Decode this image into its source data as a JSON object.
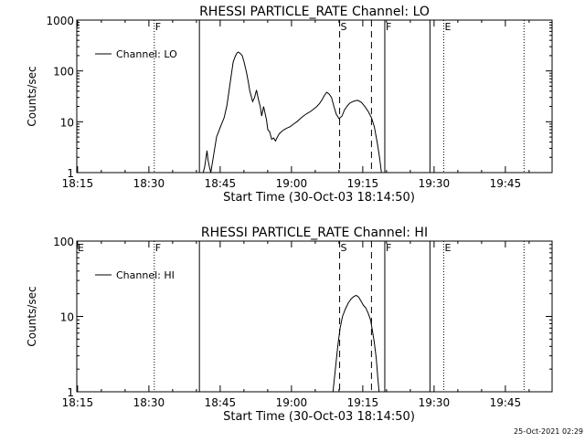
{
  "footer": {
    "timestamp": "25-Oct-2021 02:29"
  },
  "chart_data": [
    {
      "type": "line",
      "title": "RHESSI PARTICLE_RATE Channel: LO",
      "xlabel": "Start Time (30-Oct-03 18:14:50)",
      "ylabel": "Counts/sec",
      "x_unit": "minutes after 18:14:50",
      "x_tick_labels": [
        "18:15",
        "18:30",
        "18:45",
        "19:00",
        "19:15",
        "19:30",
        "19:45"
      ],
      "y_tick_labels": [
        "1",
        "10",
        "100",
        "1000"
      ],
      "y_scale": "log",
      "ylim": [
        1,
        1000
      ],
      "xlim": [
        0,
        100
      ],
      "legend": {
        "label": "Channel: LO",
        "position": "top-left"
      },
      "markers": [
        {
          "x": 16.3,
          "style": "dotted",
          "label": "F"
        },
        {
          "x": 25.8,
          "style": "solid",
          "label": ""
        },
        {
          "x": 55.3,
          "style": "dashed",
          "label": "S"
        },
        {
          "x": 62.0,
          "style": "dashed",
          "label": ""
        },
        {
          "x": 64.8,
          "style": "solid",
          "label": "F"
        },
        {
          "x": 74.3,
          "style": "solid",
          "label": ""
        },
        {
          "x": 77.2,
          "style": "dotted",
          "label": "E"
        },
        {
          "x": 94.1,
          "style": "dotted",
          "label": ""
        }
      ],
      "series": [
        {
          "name": "Channel: LO",
          "x": [
            26.6,
            26.9,
            27.4,
            27.6,
            27.9,
            28.2,
            28.6,
            29.4,
            30.2,
            31.0,
            31.6,
            32.1,
            32.6,
            32.9,
            33.3,
            33.7,
            34.0,
            34.4,
            34.8,
            35.2,
            35.7,
            36.1,
            36.4,
            36.7,
            37.0,
            37.4,
            37.8,
            38.2,
            38.6,
            38.9,
            39.3,
            39.6,
            39.9,
            40.2,
            40.6,
            41.0,
            41.4,
            41.8,
            42.2,
            42.6,
            43.0,
            43.6,
            44.2,
            44.9,
            45.6,
            46.3,
            47.0,
            47.7,
            48.4,
            49.2,
            49.9,
            50.5,
            51.1,
            51.6,
            52.1,
            52.6,
            53.1,
            53.6,
            54.1,
            54.6,
            55.2,
            55.8,
            56.3,
            56.9,
            57.5,
            58.3,
            59.1,
            59.9,
            60.6,
            61.3,
            62.0,
            62.6,
            63.2,
            63.7,
            64.1
          ],
          "y": [
            1.0,
            1.3,
            2.7,
            1.8,
            1.3,
            1.0,
            1.7,
            5.0,
            7.8,
            12.0,
            21.0,
            45.0,
            95.0,
            150.0,
            190.0,
            225.0,
            235.0,
            220.0,
            200.0,
            150.0,
            95.0,
            60.0,
            40.0,
            32.0,
            25.0,
            30.0,
            42.0,
            28.0,
            20.0,
            13.0,
            20.0,
            15.0,
            11.0,
            7.0,
            6.3,
            4.5,
            4.8,
            4.2,
            5.0,
            5.8,
            6.3,
            7.0,
            7.5,
            8.0,
            9.0,
            10.0,
            11.5,
            13.0,
            14.5,
            16.0,
            18.0,
            20.0,
            23.0,
            27.0,
            33.0,
            38.0,
            35.0,
            30.0,
            20.0,
            14.0,
            11.5,
            13.0,
            17.0,
            20.5,
            23.5,
            25.5,
            26.5,
            24.0,
            20.0,
            16.0,
            12.0,
            8.0,
            4.0,
            2.0,
            1.0
          ]
        }
      ]
    },
    {
      "type": "line",
      "title": "RHESSI PARTICLE_RATE Channel: HI",
      "xlabel": "Start Time (30-Oct-03 18:14:50)",
      "ylabel": "Counts/sec",
      "x_unit": "minutes after 18:14:50",
      "x_tick_labels": [
        "18:15",
        "18:30",
        "18:45",
        "19:00",
        "19:15",
        "19:30",
        "19:45"
      ],
      "y_tick_labels": [
        "1",
        "10",
        "100"
      ],
      "y_scale": "log",
      "ylim": [
        1,
        100
      ],
      "xlim": [
        0,
        100
      ],
      "legend": {
        "label": "Channel: HI",
        "position": "top-left"
      },
      "markers": [
        {
          "x": 0.0,
          "style": "none",
          "label": "E"
        },
        {
          "x": 16.3,
          "style": "dotted",
          "label": "F"
        },
        {
          "x": 25.8,
          "style": "solid",
          "label": ""
        },
        {
          "x": 55.3,
          "style": "dashed",
          "label": "S"
        },
        {
          "x": 62.0,
          "style": "dashed",
          "label": ""
        },
        {
          "x": 64.8,
          "style": "solid",
          "label": "F"
        },
        {
          "x": 74.3,
          "style": "solid",
          "label": ""
        },
        {
          "x": 77.2,
          "style": "dotted",
          "label": "E"
        },
        {
          "x": 94.1,
          "style": "dotted",
          "label": ""
        }
      ],
      "series": [
        {
          "name": "Channel: HI",
          "x": [
            53.9,
            54.4,
            54.9,
            55.4,
            55.9,
            56.5,
            57.1,
            57.7,
            58.3,
            58.8,
            59.3,
            59.8,
            60.3,
            60.8,
            61.3,
            61.8,
            62.2,
            62.6,
            63.0,
            63.3,
            63.6
          ],
          "y": [
            1.0,
            2.0,
            4.0,
            7.0,
            10.0,
            12.5,
            15.0,
            17.0,
            18.5,
            19.0,
            18.0,
            16.0,
            14.0,
            13.0,
            11.0,
            9.0,
            6.5,
            4.5,
            2.8,
            1.6,
            1.0
          ]
        }
      ]
    }
  ]
}
